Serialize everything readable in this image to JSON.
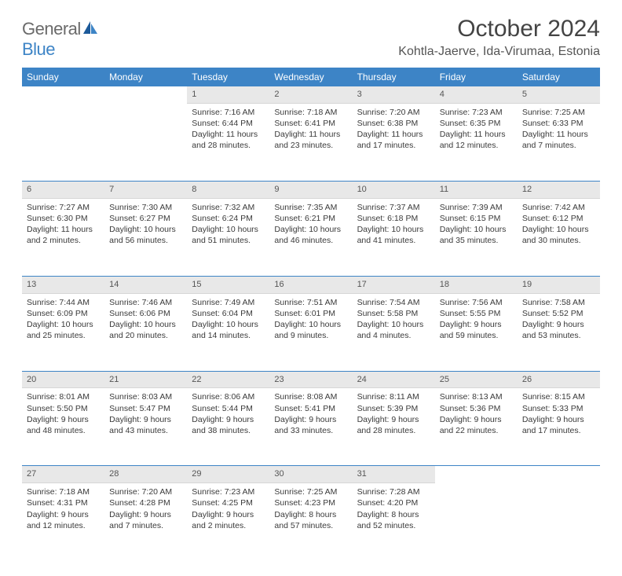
{
  "logo": {
    "general": "General",
    "blue": "Blue"
  },
  "title": "October 2024",
  "location": "Kohtla-Jaerve, Ida-Virumaa, Estonia",
  "colors": {
    "header_bg": "#3d84c6",
    "header_text": "#ffffff",
    "daynum_bg": "#e8e8e8",
    "separator": "#3d84c6"
  },
  "day_names": [
    "Sunday",
    "Monday",
    "Tuesday",
    "Wednesday",
    "Thursday",
    "Friday",
    "Saturday"
  ],
  "weeks": [
    [
      null,
      null,
      {
        "n": "1",
        "sr": "7:16 AM",
        "ss": "6:44 PM",
        "dl": "11 hours and 28 minutes."
      },
      {
        "n": "2",
        "sr": "7:18 AM",
        "ss": "6:41 PM",
        "dl": "11 hours and 23 minutes."
      },
      {
        "n": "3",
        "sr": "7:20 AM",
        "ss": "6:38 PM",
        "dl": "11 hours and 17 minutes."
      },
      {
        "n": "4",
        "sr": "7:23 AM",
        "ss": "6:35 PM",
        "dl": "11 hours and 12 minutes."
      },
      {
        "n": "5",
        "sr": "7:25 AM",
        "ss": "6:33 PM",
        "dl": "11 hours and 7 minutes."
      }
    ],
    [
      {
        "n": "6",
        "sr": "7:27 AM",
        "ss": "6:30 PM",
        "dl": "11 hours and 2 minutes."
      },
      {
        "n": "7",
        "sr": "7:30 AM",
        "ss": "6:27 PM",
        "dl": "10 hours and 56 minutes."
      },
      {
        "n": "8",
        "sr": "7:32 AM",
        "ss": "6:24 PM",
        "dl": "10 hours and 51 minutes."
      },
      {
        "n": "9",
        "sr": "7:35 AM",
        "ss": "6:21 PM",
        "dl": "10 hours and 46 minutes."
      },
      {
        "n": "10",
        "sr": "7:37 AM",
        "ss": "6:18 PM",
        "dl": "10 hours and 41 minutes."
      },
      {
        "n": "11",
        "sr": "7:39 AM",
        "ss": "6:15 PM",
        "dl": "10 hours and 35 minutes."
      },
      {
        "n": "12",
        "sr": "7:42 AM",
        "ss": "6:12 PM",
        "dl": "10 hours and 30 minutes."
      }
    ],
    [
      {
        "n": "13",
        "sr": "7:44 AM",
        "ss": "6:09 PM",
        "dl": "10 hours and 25 minutes."
      },
      {
        "n": "14",
        "sr": "7:46 AM",
        "ss": "6:06 PM",
        "dl": "10 hours and 20 minutes."
      },
      {
        "n": "15",
        "sr": "7:49 AM",
        "ss": "6:04 PM",
        "dl": "10 hours and 14 minutes."
      },
      {
        "n": "16",
        "sr": "7:51 AM",
        "ss": "6:01 PM",
        "dl": "10 hours and 9 minutes."
      },
      {
        "n": "17",
        "sr": "7:54 AM",
        "ss": "5:58 PM",
        "dl": "10 hours and 4 minutes."
      },
      {
        "n": "18",
        "sr": "7:56 AM",
        "ss": "5:55 PM",
        "dl": "9 hours and 59 minutes."
      },
      {
        "n": "19",
        "sr": "7:58 AM",
        "ss": "5:52 PM",
        "dl": "9 hours and 53 minutes."
      }
    ],
    [
      {
        "n": "20",
        "sr": "8:01 AM",
        "ss": "5:50 PM",
        "dl": "9 hours and 48 minutes."
      },
      {
        "n": "21",
        "sr": "8:03 AM",
        "ss": "5:47 PM",
        "dl": "9 hours and 43 minutes."
      },
      {
        "n": "22",
        "sr": "8:06 AM",
        "ss": "5:44 PM",
        "dl": "9 hours and 38 minutes."
      },
      {
        "n": "23",
        "sr": "8:08 AM",
        "ss": "5:41 PM",
        "dl": "9 hours and 33 minutes."
      },
      {
        "n": "24",
        "sr": "8:11 AM",
        "ss": "5:39 PM",
        "dl": "9 hours and 28 minutes."
      },
      {
        "n": "25",
        "sr": "8:13 AM",
        "ss": "5:36 PM",
        "dl": "9 hours and 22 minutes."
      },
      {
        "n": "26",
        "sr": "8:15 AM",
        "ss": "5:33 PM",
        "dl": "9 hours and 17 minutes."
      }
    ],
    [
      {
        "n": "27",
        "sr": "7:18 AM",
        "ss": "4:31 PM",
        "dl": "9 hours and 12 minutes."
      },
      {
        "n": "28",
        "sr": "7:20 AM",
        "ss": "4:28 PM",
        "dl": "9 hours and 7 minutes."
      },
      {
        "n": "29",
        "sr": "7:23 AM",
        "ss": "4:25 PM",
        "dl": "9 hours and 2 minutes."
      },
      {
        "n": "30",
        "sr": "7:25 AM",
        "ss": "4:23 PM",
        "dl": "8 hours and 57 minutes."
      },
      {
        "n": "31",
        "sr": "7:28 AM",
        "ss": "4:20 PM",
        "dl": "8 hours and 52 minutes."
      },
      null,
      null
    ]
  ],
  "labels": {
    "sunrise": "Sunrise: ",
    "sunset": "Sunset: ",
    "daylight": "Daylight: "
  }
}
